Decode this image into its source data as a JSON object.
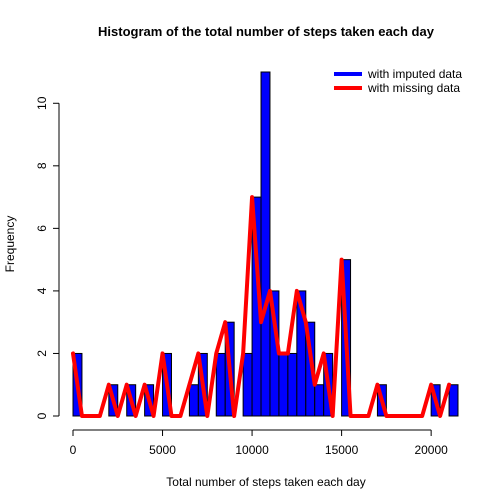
{
  "chart_data": {
    "type": "bar",
    "title": "Histogram of the total number of steps taken each day",
    "xlabel": "Total number of steps taken each day",
    "ylabel": "Frequency",
    "xlim": [
      0,
      21500
    ],
    "ylim": [
      0,
      11
    ],
    "x_ticks": [
      0,
      5000,
      10000,
      15000,
      20000
    ],
    "y_ticks": [
      0,
      2,
      4,
      6,
      8,
      10
    ],
    "bin_width": 500,
    "legend_position": "top-right",
    "series": [
      {
        "name": "with imputed data",
        "style": "bars",
        "color": "#0000ff",
        "bins_start": [
          0,
          500,
          1000,
          1500,
          2000,
          2500,
          3000,
          3500,
          4000,
          4500,
          5000,
          5500,
          6000,
          6500,
          7000,
          7500,
          8000,
          8500,
          9000,
          9500,
          10000,
          10500,
          11000,
          11500,
          12000,
          12500,
          13000,
          13500,
          14000,
          14500,
          15000,
          15500,
          16000,
          16500,
          17000,
          17500,
          18000,
          18500,
          19000,
          19500,
          20000,
          20500,
          21000
        ],
        "values": [
          2,
          0,
          0,
          0,
          1,
          0,
          1,
          0,
          1,
          0,
          2,
          0,
          0,
          1,
          2,
          0,
          2,
          3,
          0,
          2,
          7,
          11,
          4,
          2,
          2,
          4,
          3,
          1,
          2,
          0,
          5,
          0,
          0,
          0,
          1,
          0,
          0,
          0,
          0,
          0,
          1,
          0,
          1
        ]
      },
      {
        "name": "with missing data",
        "style": "line",
        "color": "#ff0000",
        "x": [
          0,
          500,
          1000,
          1500,
          2000,
          2500,
          3000,
          3500,
          4000,
          4500,
          5000,
          5500,
          6000,
          6500,
          7000,
          7500,
          8000,
          8500,
          9000,
          9500,
          10000,
          10500,
          11000,
          11500,
          12000,
          12500,
          13000,
          13500,
          14000,
          14500,
          15000,
          15500,
          16000,
          16500,
          17000,
          17500,
          18000,
          18500,
          19000,
          19500,
          20000,
          20500,
          21000
        ],
        "values": [
          2,
          0,
          0,
          0,
          1,
          0,
          1,
          0,
          1,
          0,
          2,
          0,
          0,
          1,
          2,
          0,
          2,
          3,
          0,
          2,
          7,
          3,
          4,
          2,
          2,
          4,
          3,
          1,
          2,
          0,
          5,
          0,
          0,
          0,
          1,
          0,
          0,
          0,
          0,
          0,
          1,
          0,
          1
        ]
      }
    ]
  }
}
